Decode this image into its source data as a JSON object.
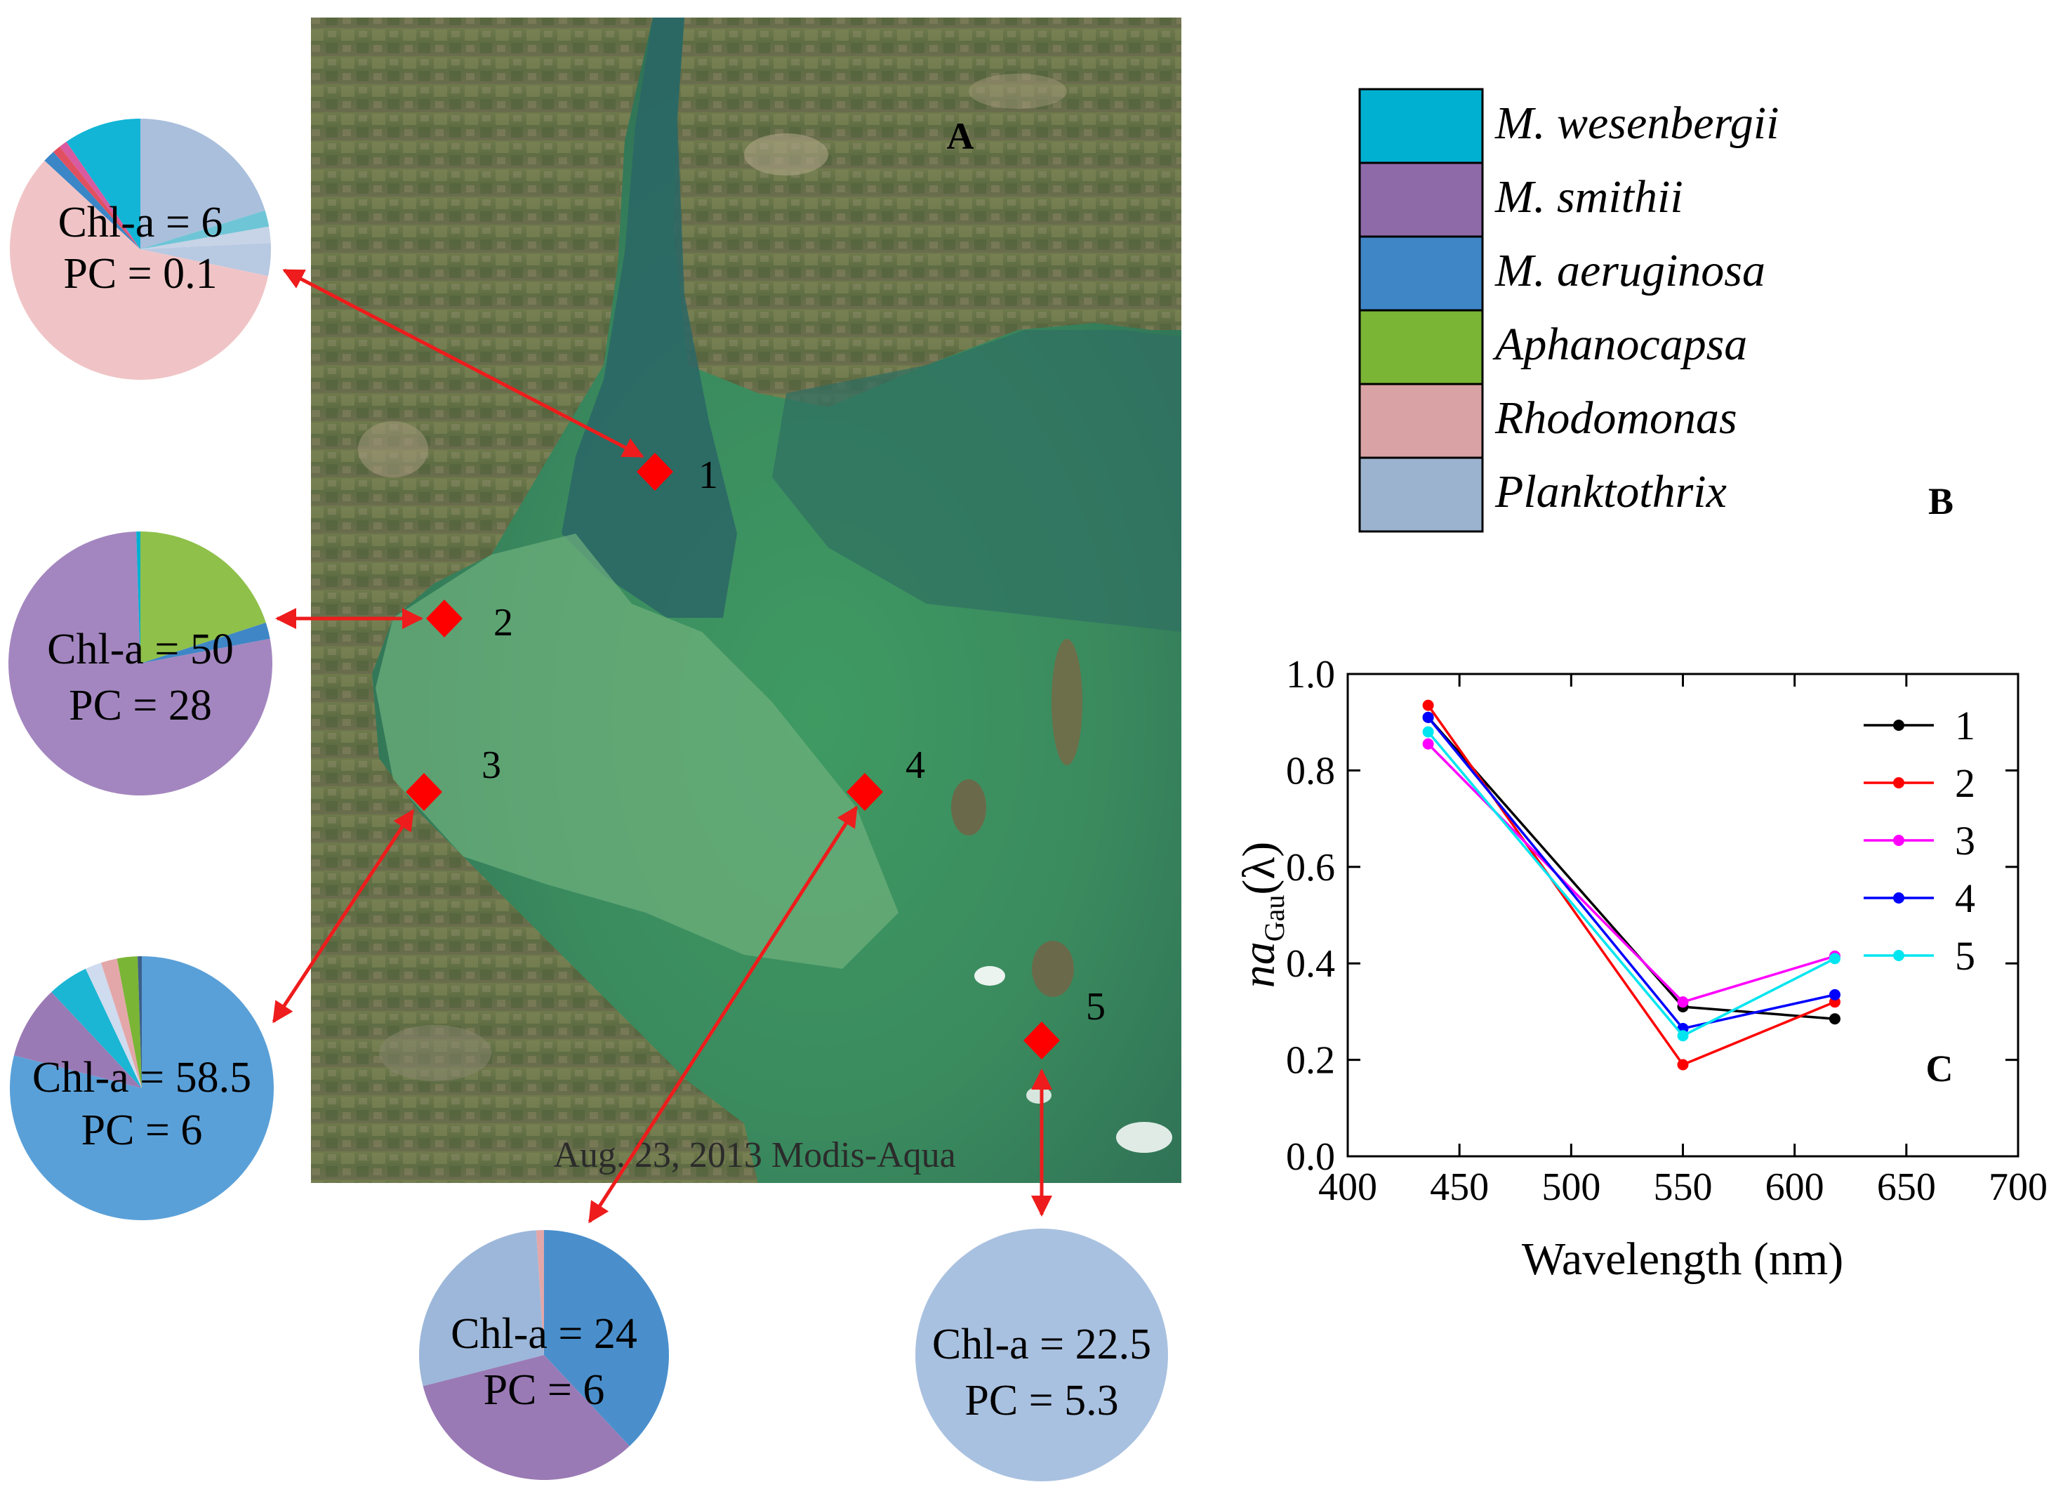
{
  "panel_a": {
    "label": "A",
    "caption": "Aug. 23, 2013 Modis-Aqua",
    "site_labels": [
      "1",
      "2",
      "3",
      "4",
      "5"
    ]
  },
  "panel_b": {
    "label": "B",
    "legend": [
      {
        "name": "M. wesenbergii",
        "color": "#00b0d0"
      },
      {
        "name": "M. smithii",
        "color": "#8e6aa8"
      },
      {
        "name": "M. aeruginosa",
        "color": "#3f86c6"
      },
      {
        "name": "Aphanocapsa",
        "color": "#7ab535"
      },
      {
        "name": "Rhodomonas",
        "color": "#d9a2a4"
      },
      {
        "name": "Planktothrix",
        "color": "#9cb3cf"
      }
    ]
  },
  "pies": [
    {
      "site": "1",
      "chl_label": "Chl-a = 6",
      "pc_label": "PC = 0.1",
      "slices": [
        {
          "name": "Planktothrix",
          "value": 20,
          "color": "#a9bfdc"
        },
        {
          "name": "M. wesenbergii",
          "value": 2,
          "color": "#6ec5d6"
        },
        {
          "name": "Other",
          "value": 2,
          "color": "#c7d3e6"
        },
        {
          "name": "Planktothrix",
          "value": 4,
          "color": "#b8c9e2"
        },
        {
          "name": "Rhodomonas",
          "value": 58,
          "color": "#f0c4c6"
        },
        {
          "name": "M. aeruginosa",
          "value": 1.5,
          "color": "#3a86c7"
        },
        {
          "name": "Other",
          "value": 1,
          "color": "#e05060"
        },
        {
          "name": "M. smithii",
          "value": 1,
          "color": "#d85aa0"
        },
        {
          "name": "M. wesenbergii",
          "value": 9.5,
          "color": "#12b5d6"
        }
      ]
    },
    {
      "site": "2",
      "chl_label": "Chl-a = 50",
      "pc_label": "PC = 28",
      "slices": [
        {
          "name": "Aphanocapsa",
          "value": 20,
          "color": "#8fc04a"
        },
        {
          "name": "M. aeruginosa",
          "value": 2,
          "color": "#3f86c6"
        },
        {
          "name": "M. smithii",
          "value": 77.5,
          "color": "#a386bf"
        },
        {
          "name": "M. wesenbergii",
          "value": 0.5,
          "color": "#00b0d0"
        }
      ]
    },
    {
      "site": "3",
      "chl_label": "Chl-a = 58.5",
      "pc_label": "PC = 6",
      "slices": [
        {
          "name": "M. aeruginosa",
          "value": 79,
          "color": "#5aa0d8"
        },
        {
          "name": "M. smithii",
          "value": 9,
          "color": "#9a7ab5"
        },
        {
          "name": "M. wesenbergii",
          "value": 5,
          "color": "#1ab6d4"
        },
        {
          "name": "Planktothrix",
          "value": 2,
          "color": "#cfdcef"
        },
        {
          "name": "Rhodomonas",
          "value": 2,
          "color": "#e3a7a9"
        },
        {
          "name": "Aphanocapsa",
          "value": 2.5,
          "color": "#7ab535"
        },
        {
          "name": "Other",
          "value": 0.5,
          "color": "#3c5f8a"
        }
      ]
    },
    {
      "site": "4",
      "chl_label": "Chl-a = 24",
      "pc_label": "PC = 6",
      "slices": [
        {
          "name": "M. aeruginosa",
          "value": 38,
          "color": "#4a8fcc"
        },
        {
          "name": "M. smithii",
          "value": 33,
          "color": "#9a7ab5"
        },
        {
          "name": "Planktothrix",
          "value": 28,
          "color": "#9cb7d9"
        },
        {
          "name": "Rhodomonas",
          "value": 1,
          "color": "#e3a7a9"
        }
      ]
    },
    {
      "site": "5",
      "chl_label": "Chl-a = 22.5",
      "pc_label": "PC = 5.3",
      "slices": [
        {
          "name": "Planktothrix",
          "value": 100,
          "color": "#a9c1e0"
        }
      ]
    }
  ],
  "chart_data": {
    "type": "line",
    "panel_label": "C",
    "xlabel": "Wavelength (nm)",
    "ylabel_main": "na",
    "ylabel_sub": "Gau",
    "ylabel_suffix": "(λ)",
    "xlim": [
      400,
      700
    ],
    "ylim": [
      0.0,
      1.0
    ],
    "xticks": [
      400,
      450,
      500,
      550,
      600,
      650,
      700
    ],
    "xtick_labels": [
      "400",
      "450",
      "500",
      "550",
      "600",
      "650",
      "700"
    ],
    "yticks": [
      0.0,
      0.2,
      0.4,
      0.6,
      0.8,
      1.0
    ],
    "ytick_labels": [
      "0.0",
      "0.2",
      "0.4",
      "0.6",
      "0.8",
      "1.0"
    ],
    "x": [
      436,
      550,
      618
    ],
    "series": [
      {
        "name": "1",
        "color": "#000000",
        "values": [
          0.91,
          0.31,
          0.285
        ]
      },
      {
        "name": "2",
        "color": "#ff0000",
        "values": [
          0.935,
          0.19,
          0.32
        ]
      },
      {
        "name": "3",
        "color": "#ff00ff",
        "values": [
          0.855,
          0.32,
          0.415
        ]
      },
      {
        "name": "4",
        "color": "#0000ff",
        "values": [
          0.91,
          0.265,
          0.335
        ]
      },
      {
        "name": "5",
        "color": "#00e5f0",
        "values": [
          0.88,
          0.25,
          0.41
        ]
      }
    ],
    "legend_position": "top-right"
  }
}
